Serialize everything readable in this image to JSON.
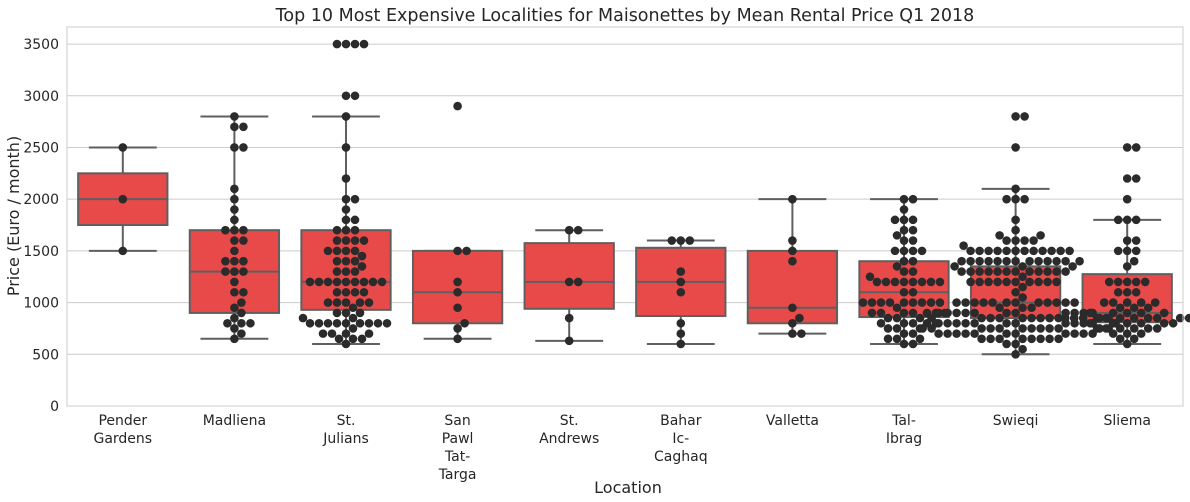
{
  "chart_data": {
    "type": "box",
    "title": "Top 10 Most Expensive Localities for Maisonettes by Mean Rental Price Q1 2018",
    "xlabel": "Location",
    "ylabel": "Price (Euro / month)",
    "ylim": [
      0,
      3665
    ],
    "yticks": [
      0,
      500,
      1000,
      1500,
      2000,
      2500,
      3000,
      3500
    ],
    "grid": true,
    "box_color": "#e84a4a",
    "line_color": "#5f5f5f",
    "point_color": "#2b2b2b",
    "categories": [
      {
        "label": [
          "Pender",
          "Gardens"
        ],
        "whislo": 1500,
        "q1": 1750,
        "med": 2000,
        "q3": 2250,
        "whishi": 2500,
        "points": [
          1500,
          2000,
          2500
        ]
      },
      {
        "label": [
          "Madliena"
        ],
        "whislo": 650,
        "q1": 900,
        "med": 1300,
        "q3": 1700,
        "whishi": 2800,
        "points": [
          650,
          700,
          750,
          800,
          800,
          800,
          850,
          900,
          950,
          1000,
          1100,
          1100,
          1200,
          1300,
          1300,
          1300,
          1400,
          1400,
          1400,
          1500,
          1600,
          1600,
          1700,
          1700,
          1700,
          1800,
          1900,
          2000,
          2100,
          2500,
          2500,
          2700,
          2700,
          2800
        ]
      },
      {
        "label": [
          "St.",
          "Julians"
        ],
        "whislo": 600,
        "q1": 930,
        "med": 1200,
        "q3": 1700,
        "whishi": 2800,
        "points": [
          600,
          650,
          650,
          650,
          700,
          700,
          700,
          700,
          750,
          800,
          800,
          800,
          800,
          800,
          800,
          800,
          800,
          800,
          850,
          850,
          900,
          900,
          900,
          950,
          1000,
          1000,
          1000,
          1000,
          1000,
          1100,
          1100,
          1100,
          1100,
          1200,
          1200,
          1200,
          1200,
          1200,
          1200,
          1200,
          1200,
          1200,
          1300,
          1300,
          1300,
          1350,
          1400,
          1400,
          1400,
          1450,
          1500,
          1500,
          1500,
          1500,
          1600,
          1600,
          1600,
          1600,
          1700,
          1700,
          1700,
          1800,
          1800,
          1900,
          2000,
          2000,
          2200,
          2500,
          2800,
          3000,
          3000,
          3500,
          3500,
          3500,
          3500
        ]
      },
      {
        "label": [
          "San",
          "Pawl",
          "Tat-",
          "Targa"
        ],
        "whislo": 650,
        "q1": 800,
        "med": 1100,
        "q3": 1500,
        "whishi": 1500,
        "points": [
          650,
          750,
          800,
          950,
          1100,
          1200,
          1500,
          1500,
          2900
        ]
      },
      {
        "label": [
          "St.",
          "Andrews"
        ],
        "whislo": 630,
        "q1": 940,
        "med": 1200,
        "q3": 1575,
        "whishi": 1700,
        "points": [
          630,
          850,
          1200,
          1200,
          1700,
          1700
        ]
      },
      {
        "label": [
          "Bahar",
          "Ic-",
          "Caghaq"
        ],
        "whislo": 600,
        "q1": 870,
        "med": 1200,
        "q3": 1530,
        "whishi": 1600,
        "points": [
          600,
          700,
          800,
          1100,
          1200,
          1300,
          1600,
          1600,
          1600
        ]
      },
      {
        "label": [
          "Valletta"
        ],
        "whislo": 700,
        "q1": 800,
        "med": 950,
        "q3": 1500,
        "whishi": 2000,
        "points": [
          700,
          700,
          800,
          850,
          950,
          1400,
          1500,
          1600,
          2000
        ]
      },
      {
        "label": [
          "Tal-",
          "Ibrag"
        ],
        "whislo": 600,
        "q1": 860,
        "med": 1100,
        "q3": 1400,
        "whishi": 2000,
        "points": [
          600,
          600,
          650,
          650,
          650,
          700,
          700,
          750,
          750,
          750,
          800,
          800,
          800,
          800,
          800,
          850,
          850,
          850,
          900,
          900,
          900,
          900,
          900,
          900,
          900,
          950,
          1000,
          1000,
          1000,
          1000,
          1000,
          1000,
          1000,
          1000,
          1000,
          1100,
          1100,
          1200,
          1200,
          1200,
          1200,
          1200,
          1200,
          1200,
          1200,
          1250,
          1300,
          1300,
          1350,
          1400,
          1400,
          1500,
          1500,
          1500,
          1500,
          1600,
          1600,
          1650,
          1700,
          1700,
          1800,
          1800,
          1800,
          1900,
          2000,
          2000
        ]
      },
      {
        "label": [
          "Swieqi"
        ],
        "whislo": 500,
        "q1": 850,
        "med": 1000,
        "q3": 1350,
        "whishi": 2100,
        "points": [
          500,
          550,
          600,
          600,
          650,
          650,
          650,
          650,
          650,
          650,
          650,
          650,
          700,
          700,
          700,
          700,
          700,
          700,
          700,
          700,
          700,
          700,
          700,
          750,
          750,
          750,
          750,
          750,
          750,
          750,
          750,
          750,
          750,
          750,
          750,
          800,
          800,
          800,
          800,
          800,
          800,
          800,
          800,
          800,
          800,
          800,
          800,
          800,
          850,
          850,
          850,
          850,
          850,
          850,
          850,
          850,
          850,
          850,
          850,
          900,
          900,
          900,
          900,
          900,
          900,
          900,
          900,
          900,
          900,
          900,
          950,
          950,
          950,
          1000,
          1000,
          1000,
          1000,
          1000,
          1000,
          1000,
          1000,
          1000,
          1000,
          1000,
          1000,
          1050,
          1100,
          1150,
          1200,
          1200,
          1200,
          1200,
          1200,
          1200,
          1200,
          1200,
          1200,
          1200,
          1250,
          1300,
          1300,
          1300,
          1300,
          1300,
          1300,
          1300,
          1300,
          1300,
          1300,
          1300,
          1300,
          1350,
          1350,
          1350,
          1400,
          1400,
          1400,
          1400,
          1400,
          1400,
          1400,
          1400,
          1400,
          1400,
          1400,
          1400,
          1400,
          1500,
          1500,
          1500,
          1500,
          1500,
          1500,
          1500,
          1500,
          1500,
          1500,
          1500,
          1500,
          1550,
          1600,
          1600,
          1600,
          1600,
          1650,
          1650,
          1700,
          1800,
          2000,
          2000,
          2000,
          2100,
          2500,
          2800,
          2800
        ]
      },
      {
        "label": [
          "Sliema"
        ],
        "whislo": 600,
        "q1": 810,
        "med": 900,
        "q3": 1275,
        "whishi": 1800,
        "points": [
          600,
          650,
          650,
          700,
          700,
          700,
          750,
          750,
          750,
          750,
          750,
          750,
          800,
          800,
          800,
          800,
          800,
          800,
          850,
          850,
          850,
          850,
          850,
          850,
          850,
          850,
          850,
          850,
          850,
          850,
          900,
          900,
          900,
          900,
          900,
          950,
          950,
          950,
          1000,
          1000,
          1000,
          1000,
          1000,
          1100,
          1100,
          1100,
          1200,
          1200,
          1200,
          1200,
          1200,
          1350,
          1400,
          1500,
          1500,
          1500,
          1600,
          1600,
          1800,
          1800,
          1800,
          2000,
          2200,
          2200,
          2500,
          2500
        ]
      }
    ]
  }
}
